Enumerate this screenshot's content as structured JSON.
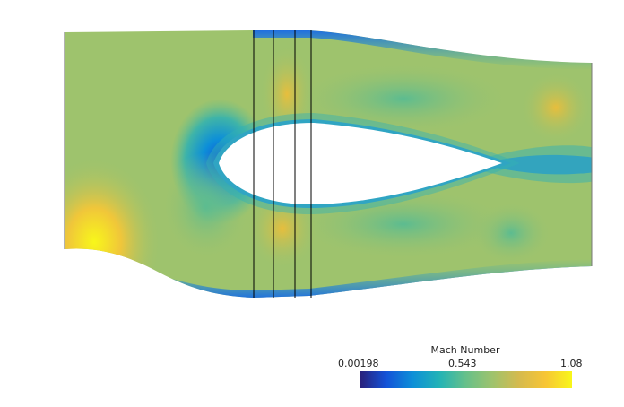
{
  "colorbar": {
    "title": "Mach Number",
    "min_label": "0.00198",
    "mid_label": "0.543",
    "max_label": "1.08",
    "colors": [
      "#2a1f78",
      "#1352d8",
      "#0d8fd8",
      "#22b3b6",
      "#66c08a",
      "#9ec36d",
      "#d5ba4e",
      "#f7c535",
      "#f8f71a"
    ]
  },
  "field": {
    "background": "#9ec36d",
    "blue": "#1f7fd8",
    "cyan": "#34b2b4",
    "orange": "#e8be3c",
    "yellow": "#f8f71a",
    "probe_line_color": "#000000"
  }
}
